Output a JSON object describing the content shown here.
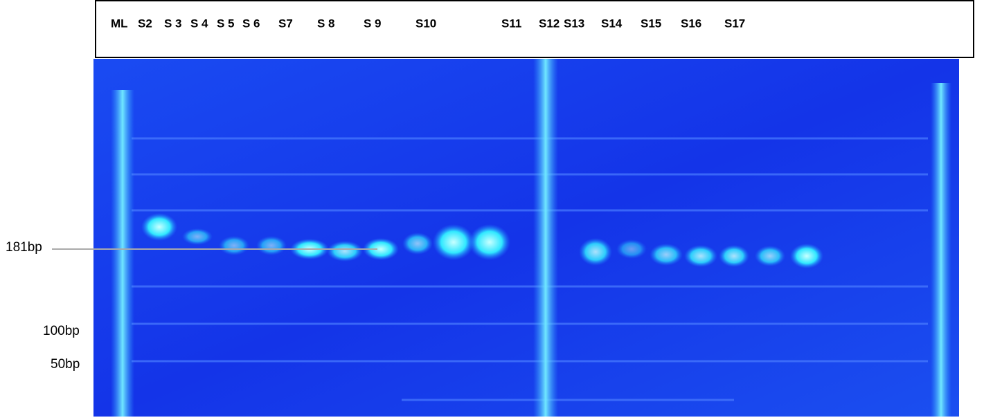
{
  "header": {
    "lanes": [
      "ML",
      "S2",
      "S 3",
      "S 4",
      "S 5",
      "S 6",
      "S7",
      "S 8",
      "S 9",
      "S10",
      "S11",
      "S12",
      "S13",
      "S14",
      "S15",
      "S16",
      "S17"
    ]
  },
  "markers": [
    "181bp",
    "100bp",
    "50bp"
  ]
}
